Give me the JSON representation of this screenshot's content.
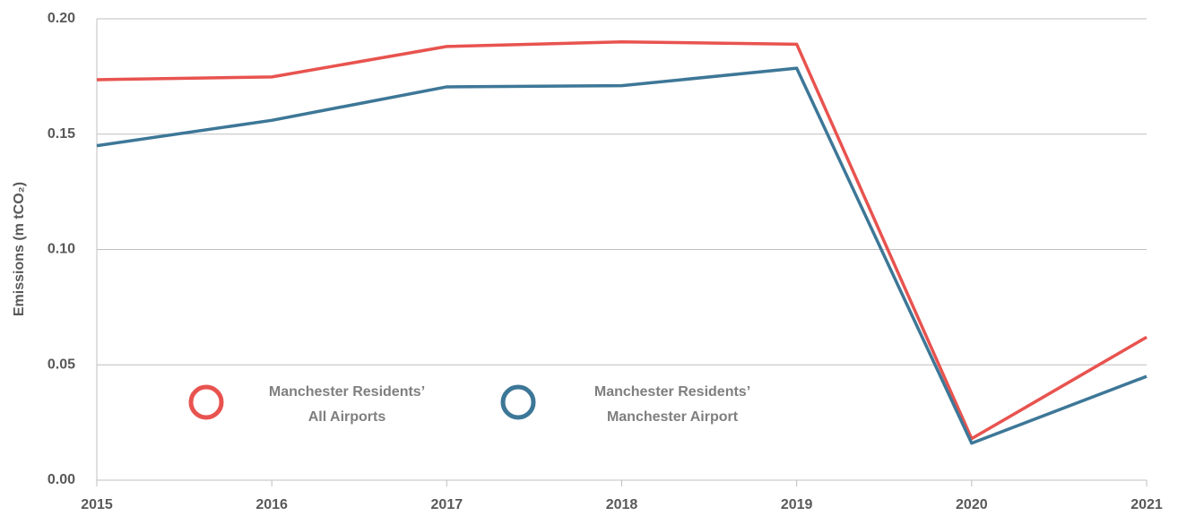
{
  "chart_data": {
    "type": "line",
    "ylabel": "Emissions (m tCO₂)",
    "x": [
      2015,
      2016,
      2017,
      2018,
      2019,
      2020,
      2021
    ],
    "xlim": [
      2015,
      2021
    ],
    "xticks": [
      2015,
      2016,
      2017,
      2018,
      2019,
      2020,
      2021
    ],
    "ylim": [
      0,
      0.2
    ],
    "yticks": [
      {
        "value": 0,
        "label": "0.00"
      },
      {
        "value": 0.05,
        "label": "0.05"
      },
      {
        "value": 0.1,
        "label": "0.10"
      },
      {
        "value": 0.15,
        "label": "0.15"
      },
      {
        "value": 0.2,
        "label": "0.20"
      }
    ],
    "grid": true,
    "series": [
      {
        "name": "Manchester Residents’\nAll Airports",
        "color": "#e8534f",
        "values": [
          0.1736,
          0.1748,
          0.188,
          0.19,
          0.189,
          0.018,
          0.062
        ]
      },
      {
        "name": "Manchester Residents’\nManchester Airport",
        "color": "#3d7797",
        "values": [
          0.145,
          0.156,
          0.1705,
          0.171,
          0.1786,
          0.016,
          0.045
        ]
      }
    ]
  }
}
